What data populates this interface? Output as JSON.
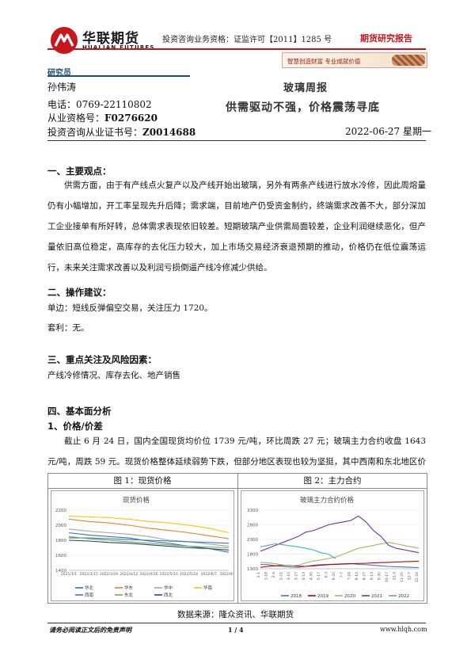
{
  "header": {
    "logo_cn": "华联期货",
    "logo_en": "HUALIAN FUTURES",
    "license": "投资咨询业务资格：证监许可【2011】1285 号",
    "report_type": "期货研究报告",
    "slogan": "智慧创造财富  专业成就价值",
    "brand_color": "#c8161d"
  },
  "analyst": {
    "heading": "研究员",
    "name": "孙伟涛",
    "phone_label": "电话：",
    "phone": "0769-22110802",
    "qual_label": "从业资格号：",
    "qual": "F0276620",
    "advisory_label": "投资咨询从业证书号：",
    "advisory": "Z0014688"
  },
  "report": {
    "title": "玻璃周报",
    "subtitle": "供需驱动不强，价格震荡寻底",
    "date": "2022-06-27  星期一"
  },
  "sections": {
    "s1_title": "一、主要观点：",
    "s1_body": "供需方面，由于有产线点火复产以及产线开始出玻璃，另外有两条产线进行放水冷修，因此周熔量仍有小幅增加，开工率呈现先升后降；需求端，目前地产仍受资金制约，终端需求改善不大，部分深加工企业接单有所好转，总体需求表现依旧较差。短期玻璃产业供需局面较差，企业利润继续恶化，但产量依旧高位稳定，高库存的去化压力较大，加上市场交易经济衰退预期的推动，价格仍在低位震荡运行，未来关注需求改善以及利润亏损倒逼产线冷修减少供给。",
    "s2_title": "二、操作建议：",
    "s2_line1": "单边：短线反弹偏空交易，关注压力 1720。",
    "s2_line2": "套利：无。",
    "s3_title": "三、重点关注及风险因素：",
    "s3_body": "产线冷修情况、库存去化、地产销售",
    "s4_title": "四、基本面分析",
    "s4_sub": "1、价格/价差",
    "s4_body": "截止 6 月 24 日，国内全国现货均价位 1739 元/吨，环比周跌 27 元；玻璃主力合约收盘 1643 元/吨，周跌 59 元。现货价格整体延续弱势下跌，但部分地区表现也较为坚挺，其中西南和东北地区价格维稳。"
  },
  "figures": {
    "fig1_caption": "图 1：现货价格",
    "fig2_caption": "图 2：主力合约",
    "data_source": "数据来源：隆众资讯、华联期货"
  },
  "chart_data": [
    {
      "type": "line",
      "title": "现货价格",
      "x": [
        "2021/1/1",
        "2022/3/15",
        "2022/3/29",
        "2022/4/12",
        "2022/4/26",
        "2022/5/10",
        "2022/5/24",
        "2022/6/7",
        "2022/6/21"
      ],
      "x_ticks": [
        "2021/1/1",
        "2022/3/15",
        "2022/3/29",
        "2022/4/12",
        "2022/4/26",
        "2022/5/10",
        "2022/5/24",
        "2022/6/7",
        "2022/6/21"
      ],
      "x_tick_labels": [
        "2021/1/1",
        "2022/3/15",
        "2022/3/29",
        "2022/4/12",
        "2022/4/26",
        "2022/5/10",
        "2022/5/24",
        "2022/6/7",
        "2022/6/21"
      ],
      "y_ticks": [
        1400,
        1600,
        1800,
        2000,
        2200
      ],
      "y_tick_labels": [
        "1400",
        "1600",
        "1800",
        "2000",
        "2200"
      ],
      "ylim": [
        1400,
        2200
      ],
      "legend_position": "bottom",
      "series": [
        {
          "name": "华北",
          "color": "#2e75b6",
          "values": [
            1900,
            1870,
            1850,
            1830,
            1790,
            1760,
            1720,
            1690,
            1640
          ]
        },
        {
          "name": "华东",
          "color": "#ed7d31",
          "values": [
            2080,
            2050,
            2030,
            2000,
            1960,
            1930,
            1900,
            1860,
            1820
          ]
        },
        {
          "name": "华中",
          "color": "#a5a5a5",
          "values": [
            1950,
            1920,
            1900,
            1880,
            1850,
            1800,
            1780,
            1750,
            1720
          ]
        },
        {
          "name": "华南",
          "color": "#ffc000",
          "values": [
            2120,
            2110,
            2100,
            2080,
            2050,
            2030,
            2000,
            1960,
            1900
          ]
        },
        {
          "name": "西南",
          "color": "#4472c4",
          "values": [
            1830,
            1830,
            1820,
            1810,
            1800,
            1790,
            1780,
            1770,
            1760
          ]
        },
        {
          "name": "东北",
          "color": "#70ad47",
          "values": [
            1850,
            1820,
            1800,
            1780,
            1760,
            1740,
            1720,
            1710,
            1700
          ]
        },
        {
          "name": "西北",
          "color": "#264478",
          "values": [
            1800,
            1790,
            1770,
            1760,
            1740,
            1720,
            1700,
            1690,
            1670
          ]
        }
      ]
    },
    {
      "type": "line",
      "title": "玻璃主力合约价格",
      "x_tick_labels": [
        "1-1",
        "1-18",
        "2-4",
        "2-21",
        "3-10",
        "3-27",
        "4-13",
        "4-30",
        "5-17",
        "6-3",
        "6-20",
        "7-7",
        "7-24",
        "8-10",
        "8-27",
        "9-13",
        "9-30",
        "10-17",
        "11-3",
        "11-20",
        "12-7",
        "12-24"
      ],
      "y_ticks": [
        1300,
        1800,
        2300,
        2800,
        3300
      ],
      "y_tick_labels": [
        "1300",
        "1800",
        "2300",
        "2800",
        "3300"
      ],
      "ylim": [
        1300,
        3300
      ],
      "legend_position": "bottom",
      "series": [
        {
          "name": "2018",
          "color": "#4472c4",
          "values": [
            1450,
            1440,
            1400,
            1380,
            1360,
            1350,
            1380,
            1420,
            1440,
            1450,
            1460,
            1470,
            1480,
            1450,
            1440,
            1420,
            1400,
            1380,
            1370,
            1360,
            1350,
            1340
          ]
        },
        {
          "name": "2019",
          "color": "#c00000",
          "values": [
            1350,
            1380,
            1400,
            1420,
            1410,
            1390,
            1380,
            1400,
            1420,
            1440,
            1450,
            1460,
            1470,
            1480,
            1490,
            1500,
            1510,
            1520,
            1530,
            1540,
            1550,
            1560
          ]
        },
        {
          "name": "2020",
          "color": "#9bbb59",
          "values": [
            1520,
            1500,
            1470,
            1430,
            1400,
            1420,
            1500,
            1560,
            1600,
            1650,
            1700,
            1800,
            1900,
            2000,
            2050,
            2100,
            2150,
            2200,
            2150,
            2100,
            2050,
            2000
          ]
        },
        {
          "name": "2021",
          "color": "#7030a0",
          "values": [
            1900,
            2000,
            2100,
            2200,
            2300,
            2400,
            2550,
            2600,
            2700,
            2800,
            2850,
            2900,
            2950,
            3100,
            2900,
            2600,
            2400,
            2100,
            2000,
            1950,
            1900,
            1850
          ]
        },
        {
          "name": "2022",
          "color": "#4bacc6",
          "values": [
            2050,
            2100,
            2150,
            2120,
            2080,
            2050,
            2000,
            1950,
            1850,
            1800,
            1650
          ]
        }
      ]
    }
  ],
  "footer": {
    "disclaimer": "请务必阅读正文后的免责声明",
    "page": "1 / 4",
    "site": "www.hlqh.com"
  }
}
